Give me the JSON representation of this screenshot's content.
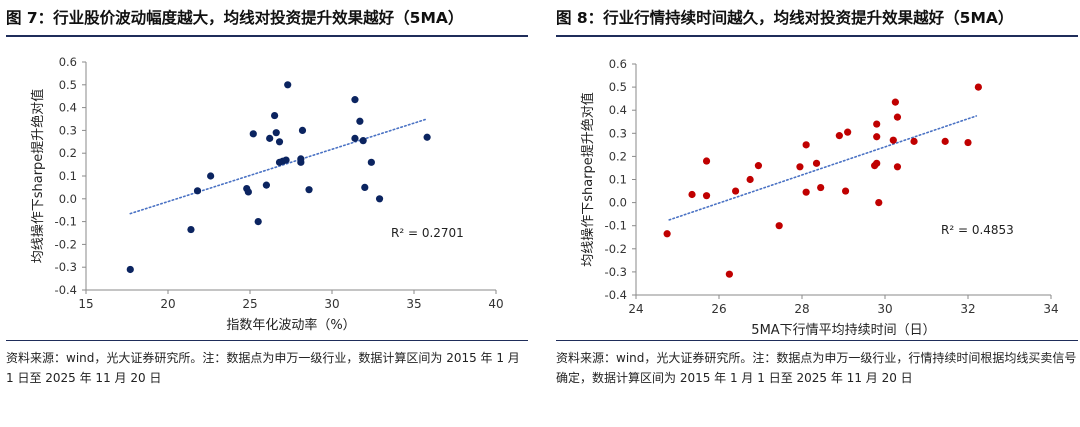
{
  "colors": {
    "left_points": "#0b2460",
    "right_points": "#c00000",
    "trendline": "#4a72c4",
    "rule": "#1f2d5a"
  },
  "chart_data": [
    {
      "type": "scatter",
      "title": "图 7：行业股价波动幅度越大，均线对投资提升效果越好（5MA）",
      "xlabel": "指数年化波动率（%）",
      "ylabel": "均线操作下sharpe提升绝对值",
      "xlim": [
        15,
        40
      ],
      "ylim": [
        -0.4,
        0.6
      ],
      "x_ticks": [
        "15",
        "20",
        "25",
        "30",
        "35",
        "40"
      ],
      "y_ticks": [
        "-0.4",
        "-0.3",
        "-0.2",
        "-0.1",
        "0.0",
        "0.1",
        "0.2",
        "0.3",
        "0.4",
        "0.5",
        "0.6"
      ],
      "trendline": {
        "type": "linear",
        "x": [
          17.7,
          35.7
        ],
        "y": [
          -0.065,
          0.348
        ],
        "style": "dotted"
      },
      "r2_label": "R² = 0.2701",
      "source": "资料来源：wind，光大证券研究所。注：数据点为申万一级行业，数据计算区间为 2015 年 1 月 1 日至 2025 年 11 月 20 日",
      "points": [
        {
          "x": 17.7,
          "y": -0.31
        },
        {
          "x": 21.4,
          "y": -0.135
        },
        {
          "x": 21.8,
          "y": 0.035
        },
        {
          "x": 22.6,
          "y": 0.1
        },
        {
          "x": 24.8,
          "y": 0.045
        },
        {
          "x": 24.9,
          "y": 0.03
        },
        {
          "x": 25.2,
          "y": 0.285
        },
        {
          "x": 25.5,
          "y": -0.1
        },
        {
          "x": 26.0,
          "y": 0.06
        },
        {
          "x": 26.2,
          "y": 0.265
        },
        {
          "x": 26.5,
          "y": 0.365
        },
        {
          "x": 26.6,
          "y": 0.29
        },
        {
          "x": 26.8,
          "y": 0.25
        },
        {
          "x": 26.8,
          "y": 0.16
        },
        {
          "x": 27.0,
          "y": 0.165
        },
        {
          "x": 27.2,
          "y": 0.17
        },
        {
          "x": 27.3,
          "y": 0.5
        },
        {
          "x": 28.1,
          "y": 0.16
        },
        {
          "x": 28.1,
          "y": 0.175
        },
        {
          "x": 28.2,
          "y": 0.3
        },
        {
          "x": 28.6,
          "y": 0.04
        },
        {
          "x": 31.4,
          "y": 0.435
        },
        {
          "x": 31.4,
          "y": 0.265
        },
        {
          "x": 31.7,
          "y": 0.34
        },
        {
          "x": 31.9,
          "y": 0.255
        },
        {
          "x": 32.0,
          "y": 0.05
        },
        {
          "x": 32.4,
          "y": 0.16
        },
        {
          "x": 32.9,
          "y": 0.0
        },
        {
          "x": 35.8,
          "y": 0.27
        }
      ]
    },
    {
      "type": "scatter",
      "title": "图 8：行业行情持续时间越久，均线对投资提升效果越好（5MA）",
      "xlabel": "5MA下行情平均持续时间（日）",
      "ylabel": "均线操作下sharpe提升绝对值",
      "xlim": [
        24,
        34
      ],
      "ylim": [
        -0.4,
        0.6
      ],
      "x_ticks": [
        "24",
        "26",
        "28",
        "30",
        "32",
        "34"
      ],
      "y_ticks": [
        "-0.4",
        "-0.3",
        "-0.2",
        "-0.1",
        "0.0",
        "0.1",
        "0.2",
        "0.3",
        "0.4",
        "0.5",
        "0.6"
      ],
      "trendline": {
        "type": "linear",
        "x": [
          24.8,
          32.2
        ],
        "y": [
          -0.075,
          0.375
        ],
        "style": "dotted"
      },
      "r2_label": "R² = 0.4853",
      "source": "资料来源：wind，光大证券研究所。注：数据点为申万一级行业，行情持续时间根据均线买卖信号确定，数据计算区间为 2015 年 1 月 1 日至 2025 年 11 月 20 日",
      "points": [
        {
          "x": 24.75,
          "y": -0.135
        },
        {
          "x": 25.35,
          "y": 0.035
        },
        {
          "x": 25.7,
          "y": 0.03
        },
        {
          "x": 25.7,
          "y": 0.18
        },
        {
          "x": 26.25,
          "y": -0.31
        },
        {
          "x": 26.4,
          "y": 0.05
        },
        {
          "x": 26.75,
          "y": 0.1
        },
        {
          "x": 26.95,
          "y": 0.16
        },
        {
          "x": 27.45,
          "y": -0.1
        },
        {
          "x": 27.95,
          "y": 0.155
        },
        {
          "x": 28.1,
          "y": 0.25
        },
        {
          "x": 28.1,
          "y": 0.045
        },
        {
          "x": 28.35,
          "y": 0.17
        },
        {
          "x": 28.45,
          "y": 0.065
        },
        {
          "x": 28.9,
          "y": 0.29
        },
        {
          "x": 29.05,
          "y": 0.05
        },
        {
          "x": 29.1,
          "y": 0.305
        },
        {
          "x": 29.75,
          "y": 0.16
        },
        {
          "x": 29.8,
          "y": 0.34
        },
        {
          "x": 29.8,
          "y": 0.17
        },
        {
          "x": 29.8,
          "y": 0.285
        },
        {
          "x": 29.85,
          "y": 0.0
        },
        {
          "x": 30.2,
          "y": 0.27
        },
        {
          "x": 30.25,
          "y": 0.435
        },
        {
          "x": 30.3,
          "y": 0.37
        },
        {
          "x": 30.3,
          "y": 0.155
        },
        {
          "x": 30.7,
          "y": 0.265
        },
        {
          "x": 31.45,
          "y": 0.265
        },
        {
          "x": 32.0,
          "y": 0.26
        },
        {
          "x": 32.25,
          "y": 0.5
        }
      ]
    }
  ]
}
